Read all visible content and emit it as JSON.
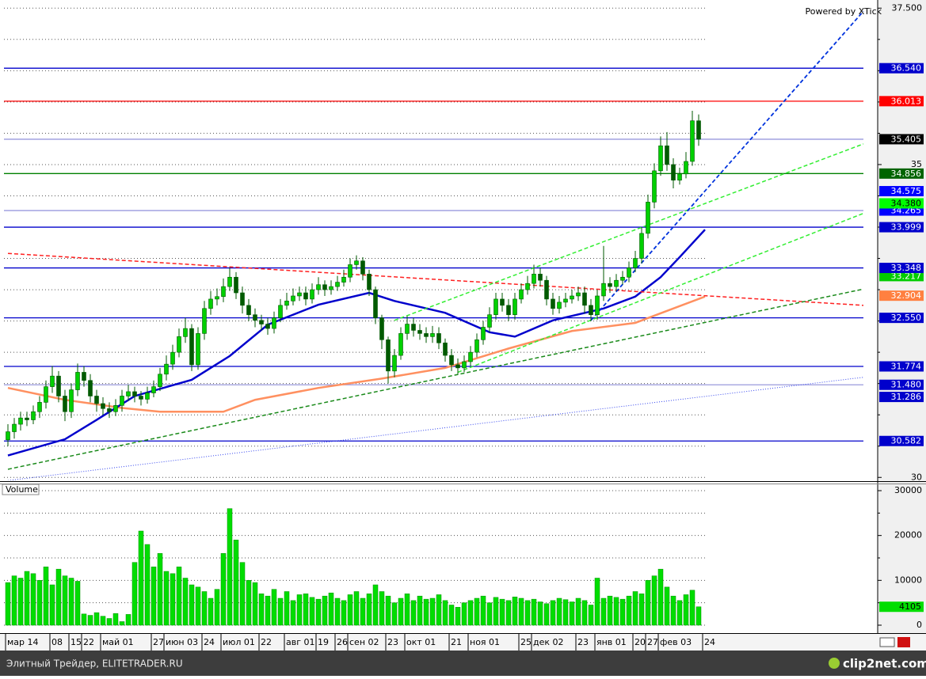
{
  "chart_data": [
    {
      "type": "candlestick",
      "title": "Powered by XTick",
      "ylim": [
        29.94,
        37.63
      ],
      "yticks": [
        30,
        35,
        {
          "value": 37.5,
          "label": "37.500"
        }
      ],
      "minor_yticks": [
        30.5,
        31,
        31.5,
        32,
        32.5,
        33,
        33.5,
        34,
        34.5,
        35.5,
        36,
        36.5,
        37
      ],
      "grid": true,
      "xticks": [
        {
          "value": 0,
          "label": "мар 14"
        },
        {
          "value": 7,
          "label": "08"
        },
        {
          "value": 10,
          "label": "15"
        },
        {
          "value": 12,
          "label": "22"
        },
        {
          "value": 15,
          "label": "май 01"
        },
        {
          "value": 23,
          "label": "27"
        },
        {
          "value": 25,
          "label": "июн 03"
        },
        {
          "value": 31,
          "label": "24"
        },
        {
          "value": 34,
          "label": "июл 01"
        },
        {
          "value": 40,
          "label": "22"
        },
        {
          "value": 44,
          "label": "авг 01"
        },
        {
          "value": 49,
          "label": "19"
        },
        {
          "value": 52,
          "label": "26"
        },
        {
          "value": 54,
          "label": "сен 02"
        },
        {
          "value": 60,
          "label": "23"
        },
        {
          "value": 63,
          "label": "окт 01"
        },
        {
          "value": 70,
          "label": "21"
        },
        {
          "value": 73,
          "label": "ноя 01"
        },
        {
          "value": 81,
          "label": "25"
        },
        {
          "value": 83,
          "label": "дек 02"
        },
        {
          "value": 90,
          "label": "23"
        },
        {
          "value": 93,
          "label": "янв 01"
        },
        {
          "value": 99,
          "label": "20"
        },
        {
          "value": 101,
          "label": "27"
        },
        {
          "value": 103,
          "label": "фев 03"
        },
        {
          "value": 110,
          "label": "24"
        }
      ],
      "up_color": "#00d000",
      "down_color": "#005a00",
      "open": [
        30.6,
        30.73,
        30.85,
        30.95,
        30.92,
        31.05,
        31.2,
        31.45,
        31.62,
        31.3,
        31.05,
        31.4,
        31.68,
        31.55,
        31.3,
        31.18,
        31.1,
        31.05,
        31.15,
        31.3,
        31.37,
        31.3,
        31.25,
        31.35,
        31.45,
        31.65,
        31.81,
        32,
        32.25,
        32.38,
        31.8,
        32.3,
        32.7,
        32.85,
        32.89,
        33.05,
        33.2,
        32.95,
        32.75,
        32.6,
        32.51,
        32.45,
        32.38,
        32.55,
        32.75,
        32.82,
        32.9,
        32.95,
        32.85,
        33,
        33.08,
        33,
        33.05,
        33.12,
        33.2,
        33.4,
        33.46,
        33.25,
        33,
        32.55,
        32.2,
        31.7,
        31.95,
        32.3,
        32.45,
        32.35,
        32.3,
        32.25,
        32.3,
        32.15,
        31.95,
        31.8,
        31.75,
        31.85,
        32,
        32.2,
        32.4,
        32.6,
        32.85,
        32.75,
        32.6,
        32.85,
        33,
        33.1,
        33.25,
        33.15,
        32.85,
        32.7,
        32.8,
        32.85,
        32.9,
        32.95,
        32.75,
        32.6,
        32.9,
        33.1,
        33.05,
        33.15,
        33.2,
        33.35,
        33.5,
        33.9,
        34.4,
        34.9,
        35.3,
        35,
        34.75,
        34.85,
        35.05,
        35.7
      ],
      "high": [
        30.85,
        30.95,
        31.05,
        31.05,
        31.15,
        31.3,
        31.55,
        31.78,
        31.7,
        31.4,
        31.5,
        31.82,
        31.78,
        31.65,
        31.4,
        31.28,
        31.2,
        31.25,
        31.4,
        31.48,
        31.45,
        31.38,
        31.45,
        31.55,
        31.75,
        31.95,
        32.12,
        32.38,
        32.55,
        32.45,
        32.4,
        32.82,
        32.98,
        33.02,
        33.18,
        33.35,
        33.28,
        33.05,
        32.85,
        32.7,
        32.6,
        32.55,
        32.65,
        32.85,
        32.95,
        33.02,
        33.05,
        33.05,
        33.1,
        33.2,
        33.15,
        33.15,
        33.22,
        33.32,
        33.5,
        33.55,
        33.52,
        33.32,
        33.05,
        32.6,
        32.25,
        32.05,
        32.4,
        32.58,
        32.55,
        32.45,
        32.4,
        32.42,
        32.4,
        32.22,
        32.05,
        31.9,
        31.95,
        32.1,
        32.3,
        32.5,
        32.72,
        32.95,
        32.95,
        32.85,
        32.95,
        33.1,
        33.22,
        33.4,
        33.35,
        33.22,
        32.95,
        32.9,
        32.95,
        33,
        33.05,
        33.05,
        32.85,
        33,
        33.7,
        33.2,
        33.25,
        33.3,
        33.45,
        33.62,
        34,
        34.52,
        35.02,
        35.45,
        35.52,
        35.1,
        34.95,
        35.2,
        35.86,
        35.8
      ],
      "low": [
        30.5,
        30.62,
        30.75,
        30.82,
        30.85,
        30.95,
        31.1,
        31.35,
        31.2,
        30.9,
        30.95,
        31.3,
        31.45,
        31.2,
        31.05,
        31,
        30.95,
        30.98,
        31.05,
        31.22,
        31.2,
        31.15,
        31.18,
        31.28,
        31.38,
        31.55,
        31.72,
        31.92,
        32.15,
        31.7,
        31.72,
        32.2,
        32.6,
        32.75,
        32.8,
        32.98,
        32.85,
        32.62,
        32.5,
        32.4,
        32.35,
        32.28,
        32.3,
        32.48,
        32.68,
        32.75,
        32.82,
        32.75,
        32.78,
        32.92,
        32.9,
        32.92,
        32.98,
        33.05,
        33.12,
        33.32,
        33.15,
        32.9,
        32.45,
        32.05,
        31.5,
        31.6,
        31.88,
        32.2,
        32.25,
        32.2,
        32.15,
        32.15,
        32.05,
        31.85,
        31.7,
        31.65,
        31.68,
        31.78,
        31.92,
        32.12,
        32.32,
        32.52,
        32.65,
        32.5,
        32.52,
        32.78,
        32.92,
        33.02,
        33.05,
        32.75,
        32.6,
        32.62,
        32.72,
        32.78,
        32.82,
        32.62,
        32.5,
        32.52,
        32.82,
        32.95,
        32.98,
        33.08,
        33.12,
        33.28,
        33.42,
        33.82,
        34.3,
        34.82,
        34.9,
        34.62,
        34.68,
        34.78,
        34.98,
        35.3
      ],
      "close": [
        30.73,
        30.85,
        30.95,
        30.92,
        31.05,
        31.2,
        31.45,
        31.62,
        31.3,
        31.05,
        31.4,
        31.68,
        31.55,
        31.3,
        31.18,
        31.1,
        31.05,
        31.15,
        31.3,
        31.37,
        31.3,
        31.25,
        31.35,
        31.45,
        31.65,
        31.81,
        32,
        32.25,
        32.38,
        31.8,
        32.3,
        32.7,
        32.85,
        32.89,
        33.05,
        33.2,
        32.95,
        32.75,
        32.6,
        32.51,
        32.45,
        32.38,
        32.55,
        32.75,
        32.82,
        32.9,
        32.95,
        32.85,
        33,
        33.08,
        33,
        33.05,
        33.12,
        33.2,
        33.4,
        33.46,
        33.25,
        33,
        32.55,
        32.2,
        31.7,
        31.95,
        32.3,
        32.45,
        32.35,
        32.3,
        32.25,
        32.3,
        32.15,
        31.95,
        31.8,
        31.75,
        31.85,
        32,
        32.2,
        32.4,
        32.6,
        32.85,
        32.75,
        32.6,
        32.85,
        33,
        33.1,
        33.25,
        33.15,
        32.85,
        32.7,
        32.8,
        32.85,
        32.9,
        32.95,
        32.75,
        32.6,
        32.9,
        33.1,
        33.05,
        33.15,
        33.2,
        33.35,
        33.5,
        33.9,
        34.4,
        34.9,
        35.3,
        35,
        34.75,
        34.85,
        35.05,
        35.7,
        35.405
      ],
      "lines": [
        {
          "color": "#ff9060",
          "style": "solid",
          "width": 2.5,
          "x": [
            0,
            9,
            18,
            24,
            34,
            39,
            49,
            59,
            69,
            79,
            89,
            99,
            105,
            110
          ],
          "values": [
            31.43,
            31.24,
            31.11,
            31.05,
            31.05,
            31.24,
            31.43,
            31.58,
            31.75,
            32.06,
            32.34,
            32.47,
            32.7,
            32.89
          ]
        },
        {
          "color": "#0000cc",
          "style": "solid",
          "width": 2.5,
          "x": [
            0,
            9,
            14,
            20,
            29,
            35,
            41,
            49,
            57,
            61,
            69,
            76,
            80,
            86,
            94,
            99,
            103,
            106,
            110
          ],
          "values": [
            30.35,
            30.61,
            30.92,
            31.3,
            31.56,
            31.94,
            32.44,
            32.76,
            32.95,
            32.82,
            32.63,
            32.32,
            32.25,
            32.51,
            32.7,
            32.89,
            33.2,
            33.52,
            33.96
          ]
        },
        {
          "color": "#ff2020",
          "style": "dashed",
          "width": 1.5,
          "x": [
            0,
            135
          ],
          "values": [
            33.58,
            32.75
          ]
        },
        {
          "color": "#1a8a1a",
          "style": "dashed",
          "width": 1.5,
          "x": [
            0,
            135
          ],
          "values": [
            30.13,
            33.01
          ]
        },
        {
          "color": "#33ee33",
          "style": "dashed",
          "width": 1.5,
          "x": [
            61,
            135
          ],
          "values": [
            32.51,
            35.33
          ]
        },
        {
          "color": "#33ee33",
          "style": "dashed",
          "width": 1.5,
          "x": [
            71,
            135
          ],
          "values": [
            31.68,
            34.22
          ]
        },
        {
          "color": "#0033dd",
          "style": "dashed",
          "width": 1.8,
          "x": [
            92,
            135
          ],
          "values": [
            32.51,
            37.45
          ]
        },
        {
          "color": "#3344ee",
          "style": "dotted",
          "width": 1,
          "x": [
            0,
            135
          ],
          "values": [
            29.95,
            31.6
          ]
        }
      ],
      "levels": [
        {
          "value": 36.54,
          "label": "36.540",
          "line_color": "#0000cc",
          "tag_color": "#0000cc"
        },
        {
          "value": 36.013,
          "line_color": "#ff0000",
          "tag_color": "#ff0000"
        },
        {
          "value": 35.405,
          "line_color": "#9999dd",
          "tag_color": "#000000"
        },
        {
          "value": 34.856,
          "line_color": "#008000",
          "tag_color": "#006400"
        },
        {
          "value": 34.575,
          "tag_color": "#0000ff"
        },
        {
          "value": 34.265,
          "line_color": "#9999dd",
          "tag_color": "#0000ff"
        },
        {
          "value": 34.38,
          "label": "34.380",
          "tag_color": "#00ff00",
          "text_color": "#000000"
        },
        {
          "value": 33.999,
          "line_color": "#0000cc",
          "tag_color": "#0000cc"
        },
        {
          "value": 33.217,
          "tag_color": "#00cc00"
        },
        {
          "value": 33.348,
          "line_color": "#0000cc",
          "tag_color": "#0000cc"
        },
        {
          "value": 32.904,
          "tag_color": "#ff8040"
        },
        {
          "value": 32.55,
          "label": "32.550",
          "line_color": "#0000cc",
          "tag_color": "#0000cc"
        },
        {
          "value": 31.774,
          "line_color": "#0000cc",
          "tag_color": "#0000cc"
        },
        {
          "value": 31.48,
          "label": "31.480",
          "line_color": "#9999dd",
          "tag_color": "#0000cc"
        },
        {
          "value": 31.286,
          "tag_color": "#0000cc"
        },
        {
          "value": 30.582,
          "line_color": "#0000cc",
          "tag_color": "#0000cc"
        }
      ]
    },
    {
      "type": "bar",
      "title": "Volume",
      "color": "#00dd00",
      "ylim": [
        -1412,
        31412
      ],
      "yticks": [
        0,
        10000,
        20000,
        30000
      ],
      "minor_yticks": [
        5000,
        15000,
        25000
      ],
      "grid": true,
      "values": [
        9500,
        11000,
        10500,
        12000,
        11500,
        10000,
        13000,
        9000,
        12500,
        11000,
        10500,
        9800,
        2500,
        2200,
        2800,
        2000,
        1500,
        2600,
        800,
        2400,
        14000,
        21000,
        18000,
        13000,
        16000,
        12000,
        11500,
        13000,
        10500,
        9000,
        8500,
        7500,
        6000,
        8000,
        16000,
        26000,
        19000,
        14000,
        10000,
        9500,
        7000,
        6500,
        8000,
        6000,
        7500,
        5500,
        6800,
        7000,
        6200,
        5800,
        6500,
        7200,
        6000,
        5500,
        6800,
        7500,
        6000,
        7000,
        9000,
        7500,
        6500,
        5000,
        6000,
        7000,
        5500,
        6500,
        5800,
        6000,
        6800,
        5500,
        4500,
        4000,
        5000,
        5500,
        6000,
        6500,
        5000,
        6200,
        5800,
        5500,
        6300,
        6000,
        5500,
        5800,
        5200,
        4800,
        5500,
        6000,
        5700,
        5200,
        6000,
        5500,
        4500,
        10500,
        6000,
        6500,
        6200,
        5800,
        6500,
        7500,
        7000,
        10000,
        11000,
        12500,
        8500,
        6500,
        5500,
        6800,
        7800,
        4105
      ]
    }
  ],
  "footer": {
    "text": "Элитный Трейдер, ELITETRADER.RU",
    "logo": "clip2net.com"
  }
}
